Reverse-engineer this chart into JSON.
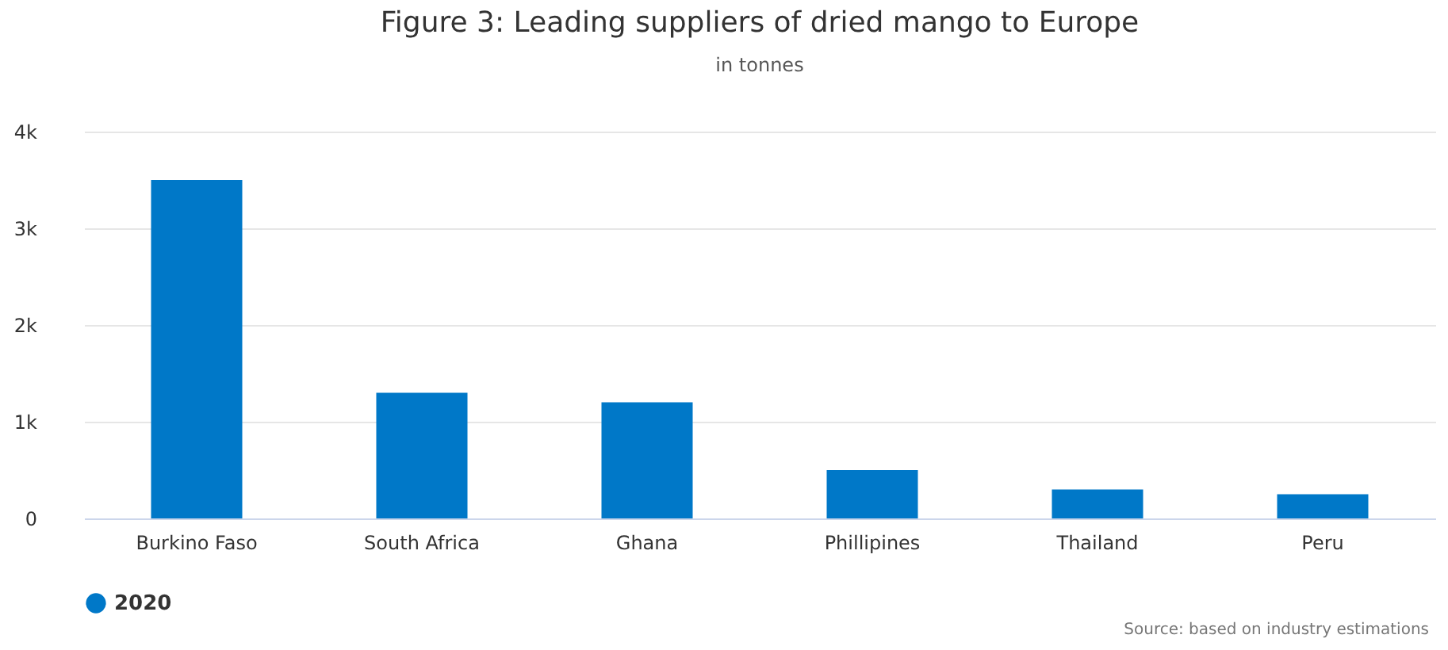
{
  "chart_data": {
    "type": "bar",
    "title": "Figure 3: Leading suppliers of dried mango to Europe",
    "subtitle": "in tonnes",
    "categories": [
      "Burkino Faso",
      "South Africa",
      "Ghana",
      "Phillipines",
      "Thailand",
      "Peru"
    ],
    "series": [
      {
        "name": "2020",
        "color": "#0078c8",
        "values": [
          3500,
          1300,
          1200,
          500,
          300,
          250
        ]
      }
    ],
    "ylim": [
      0,
      4000
    ],
    "yticks": [
      0,
      {
        "value": 1000,
        "label": "1k"
      },
      {
        "value": 2000,
        "label": "2k"
      },
      {
        "value": 3000,
        "label": "3k"
      },
      {
        "value": 4000,
        "label": "4k"
      }
    ],
    "grid": "y",
    "legend": "bottom",
    "annotations": [
      "Source: based on industry estimations"
    ]
  }
}
